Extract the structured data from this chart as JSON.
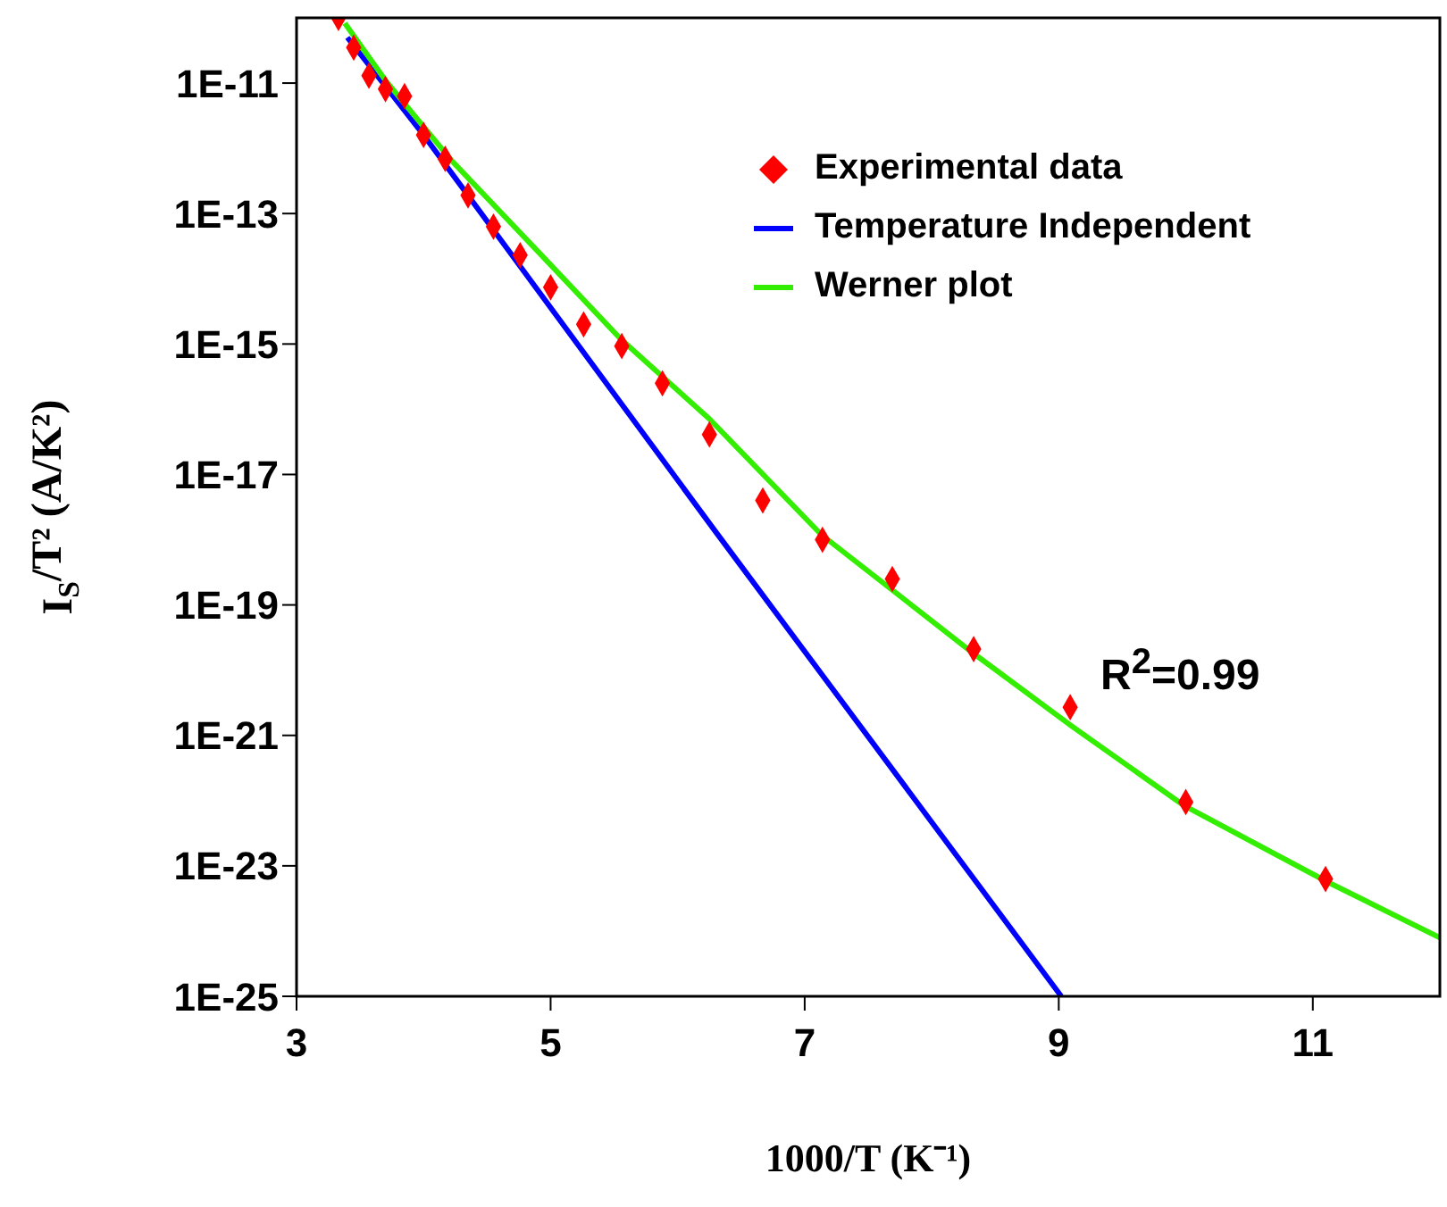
{
  "chart_data": {
    "type": "scatter",
    "xlabel": "1000/T (K⁻¹)",
    "ylabel": "I$_{S}$/T² (A/K²)",
    "log": "y",
    "legend": "top right",
    "xlim": [
      3,
      12
    ],
    "ylim": [
      1e-25,
      1e-10
    ],
    "xticks": [
      3,
      5,
      7,
      9,
      11
    ],
    "yticks": [
      {
        "value": 1e-25,
        "label": "1E-25"
      },
      {
        "value": 1e-23,
        "label": "1E-23"
      },
      {
        "value": 1e-21,
        "label": "1E-21"
      },
      {
        "value": 1e-19,
        "label": "1E-19"
      },
      {
        "value": 1e-17,
        "label": "1E-17"
      },
      {
        "value": 1e-15,
        "label": "1E-15"
      },
      {
        "value": 1e-13,
        "label": "1E-13"
      },
      {
        "value": 1e-11,
        "label": "1E-11"
      }
    ],
    "annotations": [
      "R$^{2}$=0.99"
    ],
    "series": [
      {
        "name": "Experimental data",
        "type": "scatter",
        "marker": "diamond",
        "color": "#ff0000",
        "x": [
          3.33,
          3.45,
          3.57,
          3.7,
          3.85,
          4.0,
          4.17,
          4.35,
          4.55,
          4.76,
          5.0,
          5.26,
          5.56,
          5.88,
          6.25,
          6.67,
          7.14,
          7.69,
          8.33,
          9.09,
          10.0,
          11.1
        ],
        "values": [
          1e-10,
          3.5e-11,
          1.3e-11,
          8.1e-12,
          6.3e-12,
          1.6e-12,
          6.9e-13,
          1.9e-13,
          6.3e-14,
          2.3e-14,
          7.4e-15,
          2e-15,
          9.3e-16,
          2.5e-16,
          4.1e-17,
          4e-18,
          1e-18,
          2.5e-19,
          2.1e-20,
          2.7e-21,
          9.5e-23,
          6.3e-24
        ]
      },
      {
        "name": "Temperature Independent",
        "type": "line",
        "marker": "none",
        "color": "#0000ff",
        "x": [
          3.4,
          4.0,
          4.79,
          6.29,
          9.02
        ],
        "values": [
          5e-11,
          1.6e-12,
          1.3e-14,
          1.4e-18,
          1e-25
        ]
      },
      {
        "name": "Werner plot",
        "type": "line",
        "marker": "none",
        "color": "#33ee00",
        "x": [
          3.38,
          3.7,
          4.22,
          4.98,
          5.55,
          6.25,
          7.13,
          8.33,
          9.1,
          9.99,
          11.12,
          12.0
        ],
        "values": [
          8.3e-11,
          1.1e-11,
          6.5e-13,
          1.8e-14,
          1.2e-15,
          7.1e-17,
          1.2e-18,
          1.8e-20,
          1.4e-21,
          8.3e-23,
          5.6e-24,
          7.9e-25
        ]
      }
    ]
  }
}
